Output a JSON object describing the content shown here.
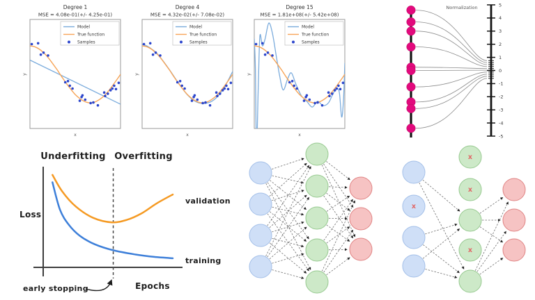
{
  "colors": {
    "model_line": "#7aabdc",
    "true_function_line": "#f7a456",
    "samples_dot": "#2b45cc",
    "validation": "#f59a23",
    "training": "#3d7fd9",
    "norm_dot": "#e20a7d",
    "axis_black": "#141414",
    "curve_gray": "#8a8a8a",
    "edge_gray": "#6e6e6e",
    "node_blue_fill": "#cfdff7",
    "node_blue_stroke": "#a3bfe8",
    "node_green_fill": "#cde9c8",
    "node_green_stroke": "#96c98f",
    "node_red_fill": "#f6c3c3",
    "node_red_stroke": "#e08383",
    "x_mark_color": "#e06666"
  },
  "chart_data": {
    "regression_panels": {
      "type": "line+scatter",
      "xlabel": "x",
      "ylabel": "y",
      "xlim": [
        0,
        1
      ],
      "ylim": [
        -1.9,
        1.9
      ],
      "legend": [
        "Model",
        "True function",
        "Samples"
      ],
      "true_function": [
        [
          0,
          1.0
        ],
        [
          0.05,
          0.97
        ],
        [
          0.1,
          0.89
        ],
        [
          0.15,
          0.76
        ],
        [
          0.2,
          0.59
        ],
        [
          0.25,
          0.38
        ],
        [
          0.3,
          0.16
        ],
        [
          0.35,
          -0.08
        ],
        [
          0.4,
          -0.31
        ],
        [
          0.45,
          -0.52
        ],
        [
          0.5,
          -0.71
        ],
        [
          0.55,
          -0.85
        ],
        [
          0.6,
          -0.95
        ],
        [
          0.65,
          -1.0
        ],
        [
          0.7,
          -0.99
        ],
        [
          0.75,
          -0.92
        ],
        [
          0.8,
          -0.81
        ],
        [
          0.85,
          -0.65
        ],
        [
          0.9,
          -0.45
        ],
        [
          0.95,
          -0.23
        ],
        [
          1.0,
          0.0
        ]
      ],
      "samples": [
        [
          0.02,
          1.06
        ],
        [
          0.09,
          1.09
        ],
        [
          0.12,
          0.69
        ],
        [
          0.15,
          0.76
        ],
        [
          0.2,
          0.66
        ],
        [
          0.39,
          -0.28
        ],
        [
          0.42,
          -0.24
        ],
        [
          0.44,
          -0.4
        ],
        [
          0.47,
          -0.5
        ],
        [
          0.55,
          -0.93
        ],
        [
          0.57,
          -0.8
        ],
        [
          0.58,
          -0.74
        ],
        [
          0.61,
          -0.89
        ],
        [
          0.67,
          -1.01
        ],
        [
          0.7,
          -0.99
        ],
        [
          0.75,
          -1.09
        ],
        [
          0.82,
          -0.64
        ],
        [
          0.83,
          -0.76
        ],
        [
          0.86,
          -0.68
        ],
        [
          0.89,
          -0.56
        ],
        [
          0.91,
          -0.5
        ],
        [
          0.93,
          -0.4
        ],
        [
          0.95,
          -0.52
        ],
        [
          0.98,
          -0.3
        ]
      ],
      "subplots": [
        {
          "title": "Degree 1",
          "mse": "MSE = 4.08e-01(+/- 4.25e-01)",
          "model": [
            [
              0,
              0.5
            ],
            [
              1,
              -1.05
            ]
          ]
        },
        {
          "title": "Degree 4",
          "mse": "MSE = 4.32e-02(+/- 7.08e-02)",
          "model": [
            [
              0,
              1.05
            ],
            [
              0.05,
              1.0
            ],
            [
              0.1,
              0.9
            ],
            [
              0.15,
              0.78
            ],
            [
              0.2,
              0.6
            ],
            [
              0.3,
              0.17
            ],
            [
              0.4,
              -0.3
            ],
            [
              0.5,
              -0.72
            ],
            [
              0.6,
              -0.97
            ],
            [
              0.7,
              -1.02
            ],
            [
              0.8,
              -0.88
            ],
            [
              0.9,
              -0.5
            ],
            [
              1.0,
              0.1
            ]
          ]
        },
        {
          "title": "Degree 15",
          "mse": "MSE = 1.81e+08(+/- 5.42e+08)",
          "model": [
            [
              0,
              1.25
            ],
            [
              0.012,
              0.2
            ],
            [
              0.025,
              -2.6
            ],
            [
              0.045,
              -0.3
            ],
            [
              0.062,
              1.35
            ],
            [
              0.09,
              1.0
            ],
            [
              0.12,
              1.25
            ],
            [
              0.16,
              1.8
            ],
            [
              0.2,
              1.45
            ],
            [
              0.24,
              0.7
            ],
            [
              0.28,
              -0.05
            ],
            [
              0.32,
              -0.55
            ],
            [
              0.37,
              -0.15
            ],
            [
              0.41,
              0.05
            ],
            [
              0.46,
              -0.35
            ],
            [
              0.52,
              -0.75
            ],
            [
              0.58,
              -0.95
            ],
            [
              0.64,
              -1.15
            ],
            [
              0.7,
              -0.95
            ],
            [
              0.76,
              -1.1
            ],
            [
              0.82,
              -1.0
            ],
            [
              0.87,
              -0.68
            ],
            [
              0.91,
              -0.5
            ],
            [
              0.94,
              -0.65
            ],
            [
              0.965,
              -1.5
            ],
            [
              0.985,
              -0.9
            ],
            [
              1.0,
              0.4
            ]
          ]
        }
      ]
    },
    "loss_curves": {
      "type": "line",
      "xlabel": "Epochs",
      "ylabel": "Loss",
      "region_labels": {
        "left": "Underfitting",
        "right": "Overfitting"
      },
      "early_stopping_label": "early stopping",
      "early_stopping_x": 0.52,
      "series": [
        {
          "name": "validation",
          "points": [
            [
              0.03,
              0.95
            ],
            [
              0.11,
              0.77
            ],
            [
              0.22,
              0.61
            ],
            [
              0.36,
              0.49
            ],
            [
              0.51,
              0.443
            ],
            [
              0.63,
              0.47
            ],
            [
              0.75,
              0.54
            ],
            [
              0.87,
              0.645
            ],
            [
              1.0,
              0.74
            ]
          ]
        },
        {
          "name": "training",
          "points": [
            [
              0.03,
              0.87
            ],
            [
              0.09,
              0.58
            ],
            [
              0.16,
              0.42
            ],
            [
              0.25,
              0.3
            ],
            [
              0.37,
              0.21
            ],
            [
              0.52,
              0.145
            ],
            [
              0.7,
              0.1
            ],
            [
              0.85,
              0.075
            ],
            [
              1.0,
              0.06
            ]
          ]
        }
      ]
    }
  },
  "normalization": {
    "title": "Normalization",
    "axis_ticks": [
      5,
      4,
      3,
      2,
      1,
      0,
      -1,
      -2,
      -3,
      -4,
      -5
    ],
    "points": [
      {
        "raw": 4.6,
        "normalized": 0.75
      },
      {
        "raw": 3.7,
        "normalized": 0.6
      },
      {
        "raw": 3.0,
        "normalized": 0.45
      },
      {
        "raw": 1.8,
        "normalized": 0.3
      },
      {
        "raw": 0.25,
        "normalized": 0.15
      },
      {
        "raw": 0.0,
        "normalized": 0.02
      },
      {
        "raw": -1.25,
        "normalized": -0.12
      },
      {
        "raw": -2.4,
        "normalized": -0.28
      },
      {
        "raw": -2.9,
        "normalized": -0.44
      },
      {
        "raw": -4.4,
        "normalized": -0.6
      }
    ]
  },
  "networks": {
    "full": {
      "layers": [
        {
          "name": "input",
          "color": "blue",
          "count": 4
        },
        {
          "name": "hidden",
          "color": "green",
          "count": 5
        },
        {
          "name": "output",
          "color": "red",
          "count": 3
        }
      ],
      "connections": "all-to-all"
    },
    "dropout": {
      "layers": [
        {
          "name": "input",
          "color": "blue",
          "count": 4
        },
        {
          "name": "hidden",
          "color": "green",
          "count": 5
        },
        {
          "name": "output",
          "color": "red",
          "count": 3
        }
      ],
      "x_mark": "x",
      "dropped": {
        "0": [
          1
        ],
        "1": [
          0,
          1,
          3
        ]
      },
      "edges": [
        [
          0,
          0,
          1,
          2
        ],
        [
          0,
          0,
          1,
          4
        ],
        [
          0,
          2,
          1,
          2
        ],
        [
          0,
          2,
          1,
          4
        ],
        [
          0,
          3,
          1,
          2
        ],
        [
          0,
          3,
          1,
          4
        ],
        [
          1,
          2,
          2,
          0
        ],
        [
          1,
          2,
          2,
          1
        ],
        [
          1,
          2,
          2,
          2
        ],
        [
          1,
          4,
          2,
          0
        ],
        [
          1,
          4,
          2,
          1
        ],
        [
          1,
          4,
          2,
          2
        ]
      ]
    }
  }
}
